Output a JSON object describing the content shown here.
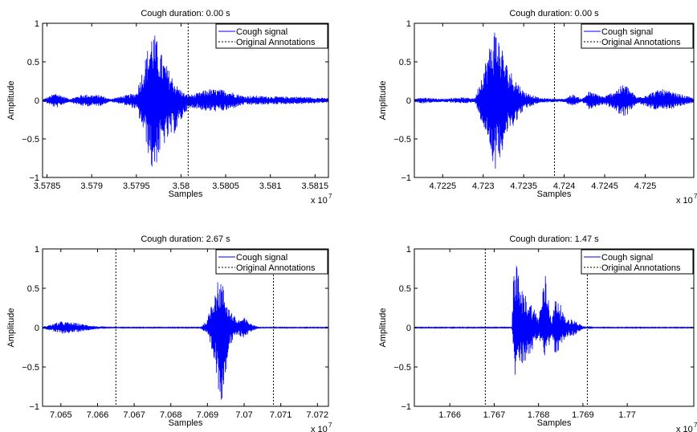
{
  "figure": {
    "background": "#ffffff",
    "signal_color": "#0000ff",
    "annotation_color": "#000000"
  },
  "chart_data": [
    {
      "type": "line",
      "title": "Cough duration: 0.00 s",
      "xlabel": "Samples",
      "ylabel": "Amplitude",
      "x_exponent_label": "x 10",
      "x_exponent": "7",
      "xlim": [
        3.57845,
        3.58165
      ],
      "ylim": [
        -1,
        1
      ],
      "xticks": [
        3.5785,
        3.579,
        3.5795,
        3.58,
        3.5805,
        3.581,
        3.5815
      ],
      "xtick_labels": [
        "3.5785",
        "3.579",
        "3.5795",
        "3.58",
        "3.5805",
        "3.581",
        "3.5815"
      ],
      "yticks": [
        -1,
        -0.5,
        0,
        0.5,
        1
      ],
      "ytick_labels": [
        "−1",
        "−0.5",
        "0",
        "0.5",
        "1"
      ],
      "annotations_x": [
        3.58008
      ],
      "legend": {
        "location": "top-right",
        "entries": [
          "Cough signal",
          "Original Annotations"
        ]
      },
      "series": [
        {
          "name": "Cough signal",
          "style": "solid",
          "color": "#0000ff",
          "envelope": [
            {
              "x": 3.57845,
              "upper": 0.01,
              "lower": -0.01
            },
            {
              "x": 3.5786,
              "upper": 0.1,
              "lower": -0.1
            },
            {
              "x": 3.57875,
              "upper": 0.02,
              "lower": -0.02
            },
            {
              "x": 3.5789,
              "upper": 0.08,
              "lower": -0.08
            },
            {
              "x": 3.5791,
              "upper": 0.07,
              "lower": -0.07
            },
            {
              "x": 3.5792,
              "upper": 0.02,
              "lower": -0.02
            },
            {
              "x": 3.57935,
              "upper": 0.06,
              "lower": -0.05
            },
            {
              "x": 3.5795,
              "upper": 0.1,
              "lower": -0.12
            },
            {
              "x": 3.5796,
              "upper": 0.55,
              "lower": -0.5
            },
            {
              "x": 3.57968,
              "upper": 0.95,
              "lower": -0.97
            },
            {
              "x": 3.5798,
              "upper": 0.55,
              "lower": -0.6
            },
            {
              "x": 3.57995,
              "upper": 0.2,
              "lower": -0.4
            },
            {
              "x": 3.58005,
              "upper": 0.08,
              "lower": -0.15
            },
            {
              "x": 3.58015,
              "upper": 0.08,
              "lower": -0.1
            },
            {
              "x": 3.5803,
              "upper": 0.15,
              "lower": -0.15
            },
            {
              "x": 3.5805,
              "upper": 0.14,
              "lower": -0.14
            },
            {
              "x": 3.5807,
              "upper": 0.06,
              "lower": -0.06
            },
            {
              "x": 3.58085,
              "upper": 0.06,
              "lower": -0.06
            },
            {
              "x": 3.5811,
              "upper": 0.05,
              "lower": -0.05
            },
            {
              "x": 3.5813,
              "upper": 0.05,
              "lower": -0.05
            },
            {
              "x": 3.58165,
              "upper": 0.03,
              "lower": -0.03
            }
          ]
        },
        {
          "name": "Original Annotations",
          "style": "dotted",
          "color": "#000000"
        }
      ]
    },
    {
      "type": "line",
      "title": "Cough duration: 0.00 s",
      "xlabel": "Samples",
      "ylabel": "Amplitude",
      "x_exponent_label": "x 10",
      "x_exponent": "7",
      "xlim": [
        4.72215,
        4.7256
      ],
      "ylim": [
        -1,
        1
      ],
      "xticks": [
        4.7225,
        4.723,
        4.7235,
        4.724,
        4.7245,
        4.725
      ],
      "xtick_labels": [
        "4.7225",
        "4.723",
        "4.7235",
        "4.724",
        "4.7245",
        "4.725"
      ],
      "yticks": [
        -1,
        -0.5,
        0,
        0.5,
        1
      ],
      "ytick_labels": [
        "−1",
        "−0.5",
        "0",
        "0.5",
        "1"
      ],
      "annotations_x": [
        4.72388
      ],
      "legend": {
        "location": "top-right",
        "entries": [
          "Cough signal",
          "Original Annotations"
        ]
      },
      "series": [
        {
          "name": "Cough signal",
          "style": "solid",
          "color": "#0000ff",
          "envelope": [
            {
              "x": 4.72215,
              "upper": 0.02,
              "lower": -0.02
            },
            {
              "x": 4.72225,
              "upper": 0.04,
              "lower": -0.04
            },
            {
              "x": 4.7225,
              "upper": 0.02,
              "lower": -0.02
            },
            {
              "x": 4.7227,
              "upper": 0.04,
              "lower": -0.04
            },
            {
              "x": 4.7229,
              "upper": 0.03,
              "lower": -0.03
            },
            {
              "x": 4.72305,
              "upper": 0.6,
              "lower": -0.5
            },
            {
              "x": 4.72315,
              "upper": 1.0,
              "lower": -0.92
            },
            {
              "x": 4.7233,
              "upper": 0.45,
              "lower": -0.45
            },
            {
              "x": 4.7235,
              "upper": 0.12,
              "lower": -0.12
            },
            {
              "x": 4.7237,
              "upper": 0.03,
              "lower": -0.03
            },
            {
              "x": 4.724,
              "upper": 0.02,
              "lower": -0.02
            },
            {
              "x": 4.7241,
              "upper": 0.08,
              "lower": -0.08
            },
            {
              "x": 4.72422,
              "upper": 0.02,
              "lower": -0.02
            },
            {
              "x": 4.7243,
              "upper": 0.12,
              "lower": -0.12
            },
            {
              "x": 4.7245,
              "upper": 0.05,
              "lower": -0.05
            },
            {
              "x": 4.72475,
              "upper": 0.22,
              "lower": -0.22
            },
            {
              "x": 4.7249,
              "upper": 0.04,
              "lower": -0.04
            },
            {
              "x": 4.7252,
              "upper": 0.15,
              "lower": -0.15
            },
            {
              "x": 4.7256,
              "upper": 0.03,
              "lower": -0.03
            }
          ]
        },
        {
          "name": "Original Annotations",
          "style": "dotted",
          "color": "#000000"
        }
      ]
    },
    {
      "type": "line",
      "title": "Cough duration: 2.67 s",
      "xlabel": "Samples",
      "ylabel": "Amplitude",
      "x_exponent_label": "x 10",
      "x_exponent": "7",
      "xlim": [
        7.0645,
        7.0723
      ],
      "ylim": [
        -1,
        1
      ],
      "xticks": [
        7.065,
        7.066,
        7.067,
        7.068,
        7.069,
        7.07,
        7.071,
        7.072
      ],
      "xtick_labels": [
        "7.065",
        "7.066",
        "7.067",
        "7.068",
        "7.069",
        "7.07",
        "7.071",
        "7.072"
      ],
      "yticks": [
        -1,
        -0.5,
        0,
        0.5,
        1
      ],
      "ytick_labels": [
        "−1",
        "−0.5",
        "0",
        "0.5",
        "1"
      ],
      "annotations_x": [
        7.0665,
        7.0708
      ],
      "legend": {
        "location": "top-right",
        "entries": [
          "Cough signal",
          "Original Annotations"
        ]
      },
      "series": [
        {
          "name": "Cough signal",
          "style": "solid",
          "color": "#0000ff",
          "envelope": [
            {
              "x": 7.0645,
              "upper": 0.01,
              "lower": -0.01
            },
            {
              "x": 7.065,
              "upper": 0.08,
              "lower": -0.08
            },
            {
              "x": 7.0654,
              "upper": 0.06,
              "lower": -0.06
            },
            {
              "x": 7.0658,
              "upper": 0.03,
              "lower": -0.03
            },
            {
              "x": 7.0662,
              "upper": 0.005,
              "lower": -0.005
            },
            {
              "x": 7.0688,
              "upper": 0.005,
              "lower": -0.005
            },
            {
              "x": 7.069,
              "upper": 0.1,
              "lower": -0.1
            },
            {
              "x": 7.0692,
              "upper": 0.55,
              "lower": -0.5
            },
            {
              "x": 7.06937,
              "upper": 0.63,
              "lower": -1.0
            },
            {
              "x": 7.0696,
              "upper": 0.25,
              "lower": -0.25
            },
            {
              "x": 7.0698,
              "upper": 0.1,
              "lower": -0.1
            },
            {
              "x": 7.07,
              "upper": 0.13,
              "lower": -0.13
            },
            {
              "x": 7.0702,
              "upper": 0.05,
              "lower": -0.05
            },
            {
              "x": 7.0704,
              "upper": 0.005,
              "lower": -0.005
            },
            {
              "x": 7.0723,
              "upper": 0.005,
              "lower": -0.005
            }
          ]
        },
        {
          "name": "Original Annotations",
          "style": "dotted",
          "color": "#000000"
        }
      ]
    },
    {
      "type": "line",
      "title": "Cough duration: 1.47 s",
      "xlabel": "Samples",
      "ylabel": "Amplitude",
      "x_exponent_label": "x 10",
      "x_exponent": "7",
      "xlim": [
        1.7652,
        1.7715
      ],
      "ylim": [
        -1,
        1
      ],
      "xticks": [
        1.766,
        1.767,
        1.768,
        1.769,
        1.77
      ],
      "xtick_labels": [
        "1.766",
        "1.767",
        "1.768",
        "1.769",
        "1.77"
      ],
      "yticks": [
        -1,
        -0.5,
        0,
        0.5,
        1
      ],
      "ytick_labels": [
        "−1",
        "−0.5",
        "0",
        "0.5",
        "1"
      ],
      "annotations_x": [
        1.7668,
        1.7691
      ],
      "legend": {
        "location": "top-right",
        "entries": [
          "Cough signal",
          "Original Annotations"
        ]
      },
      "series": [
        {
          "name": "Cough signal",
          "style": "solid",
          "color": "#0000ff",
          "envelope": [
            {
              "x": 1.7652,
              "upper": 0.005,
              "lower": -0.005
            },
            {
              "x": 1.7674,
              "upper": 0.005,
              "lower": -0.005
            },
            {
              "x": 1.76745,
              "upper": 1.0,
              "lower": -0.65
            },
            {
              "x": 1.7676,
              "upper": 0.5,
              "lower": -0.5
            },
            {
              "x": 1.7678,
              "upper": 0.35,
              "lower": -0.35
            },
            {
              "x": 1.7679,
              "upper": 0.25,
              "lower": -0.25
            },
            {
              "x": 1.768,
              "upper": 0.12,
              "lower": -0.12
            },
            {
              "x": 1.76815,
              "upper": 0.7,
              "lower": -0.45
            },
            {
              "x": 1.7683,
              "upper": 0.1,
              "lower": -0.1
            },
            {
              "x": 1.7684,
              "upper": 0.45,
              "lower": -0.45
            },
            {
              "x": 1.7686,
              "upper": 0.12,
              "lower": -0.12
            },
            {
              "x": 1.7688,
              "upper": 0.1,
              "lower": -0.1
            },
            {
              "x": 1.769,
              "upper": 0.02,
              "lower": -0.02
            },
            {
              "x": 1.7692,
              "upper": 0.005,
              "lower": -0.005
            },
            {
              "x": 1.7715,
              "upper": 0.005,
              "lower": -0.005
            }
          ]
        },
        {
          "name": "Original Annotations",
          "style": "dotted",
          "color": "#000000"
        }
      ]
    }
  ]
}
